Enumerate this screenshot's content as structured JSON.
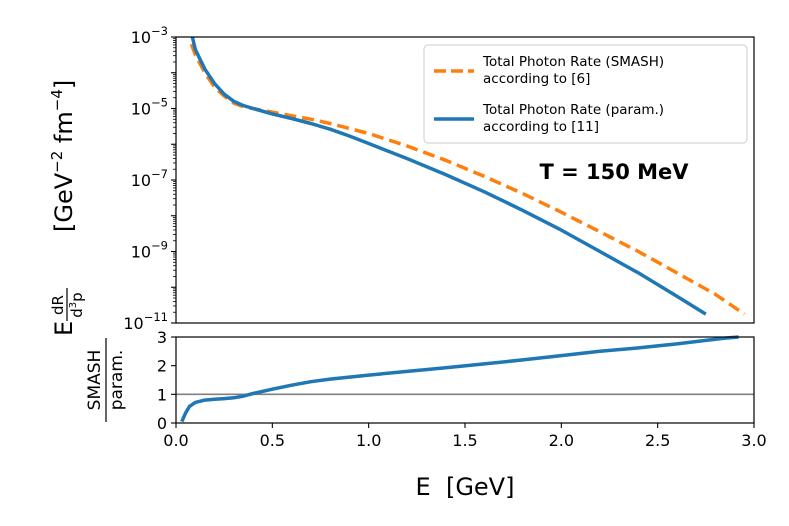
{
  "chart_data": [
    {
      "panel": "top",
      "type": "line",
      "yscale": "log",
      "xlim": [
        0.0,
        3.0
      ],
      "ylim_exponents": [
        -11,
        -3
      ],
      "y_tick_base": "10",
      "y_ticks": [
        {
          "base": "10",
          "exp": "−3",
          "value_exp": -3
        },
        {
          "base": "10",
          "exp": "−5",
          "value_exp": -5
        },
        {
          "base": "10",
          "exp": "−7",
          "value_exp": -7
        },
        {
          "base": "10",
          "exp": "−9",
          "value_exp": -9
        },
        {
          "base": "10",
          "exp": "−11",
          "value_exp": -11
        }
      ],
      "ylabel": {
        "prefix": "E",
        "frac_num": "dR",
        "frac_den_base": "d",
        "frac_den_sup": "3",
        "frac_den_tail": "p",
        "units_open": "[GeV",
        "units_exp1": "−2",
        "units_mid": " fm",
        "units_exp2": "−4",
        "units_close": "]"
      },
      "annotation": "T = 150 MeV",
      "legend": {
        "position": "upper-right",
        "entries": [
          {
            "line1": "Total Photon Rate (SMASH)",
            "line2": "according to [6]",
            "color": "#ff7f0e",
            "style": "dashed"
          },
          {
            "line1": "Total Photon Rate (param.)",
            "line2": "according to [11]",
            "color": "#1f77b4",
            "style": "solid"
          }
        ]
      },
      "series": [
        {
          "name": "Total Photon Rate (SMASH)",
          "color": "#ff7f0e",
          "style": "dashed",
          "x": [
            0.08,
            0.1,
            0.15,
            0.2,
            0.25,
            0.3,
            0.35,
            0.4,
            0.5,
            0.6,
            0.7,
            0.8,
            0.9,
            1.0,
            1.2,
            1.4,
            1.6,
            1.8,
            2.0,
            2.2,
            2.4,
            2.6,
            2.8,
            2.95
          ],
          "log10_y": [
            -3.2,
            -3.5,
            -4.0,
            -4.4,
            -4.65,
            -4.85,
            -4.95,
            -5.0,
            -5.1,
            -5.2,
            -5.3,
            -5.42,
            -5.56,
            -5.7,
            -6.05,
            -6.45,
            -6.9,
            -7.38,
            -7.9,
            -8.45,
            -9.0,
            -9.6,
            -10.2,
            -10.75
          ]
        },
        {
          "name": "Total Photon Rate (param.)",
          "color": "#1f77b4",
          "style": "solid",
          "x": [
            0.085,
            0.1,
            0.15,
            0.2,
            0.25,
            0.3,
            0.35,
            0.4,
            0.5,
            0.6,
            0.7,
            0.8,
            0.9,
            1.0,
            1.2,
            1.4,
            1.6,
            1.8,
            2.0,
            2.2,
            2.4,
            2.6,
            2.75
          ],
          "log10_y": [
            -3.0,
            -3.35,
            -3.9,
            -4.3,
            -4.6,
            -4.8,
            -4.92,
            -5.0,
            -5.15,
            -5.28,
            -5.42,
            -5.58,
            -5.77,
            -5.98,
            -6.4,
            -6.85,
            -7.33,
            -7.85,
            -8.4,
            -9.0,
            -9.6,
            -10.25,
            -10.75
          ]
        }
      ]
    },
    {
      "panel": "bottom",
      "type": "line",
      "xlim": [
        0.0,
        3.0
      ],
      "ylim": [
        0,
        3
      ],
      "x_ticks": [
        "0.0",
        "0.5",
        "1.0",
        "1.5",
        "2.0",
        "2.5",
        "3.0"
      ],
      "x_tick_values": [
        0.0,
        0.5,
        1.0,
        1.5,
        2.0,
        2.5,
        3.0
      ],
      "y_ticks": [
        "0",
        "1",
        "2",
        "3"
      ],
      "y_tick_values": [
        0,
        1,
        2,
        3
      ],
      "xlabel": "E  [GeV]",
      "ylabel": {
        "numerator": "SMASH",
        "denominator": "param."
      },
      "reference_line": {
        "y": 1,
        "color": "#808080"
      },
      "series": [
        {
          "name": "SMASH / param.",
          "color": "#1f77b4",
          "style": "solid",
          "x": [
            0.03,
            0.05,
            0.07,
            0.1,
            0.15,
            0.2,
            0.25,
            0.3,
            0.35,
            0.4,
            0.5,
            0.6,
            0.7,
            0.8,
            0.9,
            1.0,
            1.2,
            1.4,
            1.6,
            1.8,
            2.0,
            2.2,
            2.4,
            2.6,
            2.75,
            2.85,
            2.92
          ],
          "y": [
            0.05,
            0.35,
            0.58,
            0.72,
            0.8,
            0.83,
            0.85,
            0.88,
            0.94,
            1.03,
            1.18,
            1.32,
            1.44,
            1.53,
            1.6,
            1.67,
            1.8,
            1.93,
            2.06,
            2.2,
            2.35,
            2.5,
            2.62,
            2.76,
            2.88,
            2.96,
            3.0
          ]
        }
      ]
    }
  ]
}
